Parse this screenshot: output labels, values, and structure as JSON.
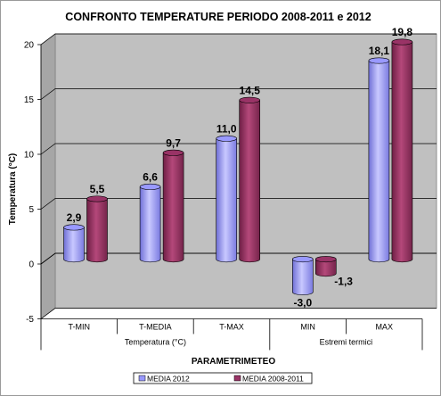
{
  "chart_data": {
    "type": "bar",
    "title": "CONFRONTO TEMPERATURE PERIODO 2008-2011 e 2012",
    "xlabel": "PARAMETRIMETEO",
    "ylabel": "Temperatura (°C)",
    "ylim": [
      -5,
      20
    ],
    "yticks": [
      -5,
      0,
      5,
      10,
      15,
      20
    ],
    "categories": [
      "T-MIN",
      "T-MEDIA",
      "T-MAX",
      "MIN",
      "MAX"
    ],
    "groups": [
      {
        "label": "Temperatura (°C)",
        "span": 3
      },
      {
        "label": "Estremi termici",
        "span": 2
      }
    ],
    "series": [
      {
        "name": "MEDIA 2012",
        "values": [
          2.9,
          6.6,
          11.0,
          -3.0,
          18.1
        ],
        "labels": [
          "2,9",
          "6,6",
          "11,0",
          "-3,0",
          "18,1"
        ],
        "color": "#9999ff"
      },
      {
        "name": "MEDIA 2008-2011",
        "values": [
          5.5,
          9.7,
          14.5,
          -1.3,
          19.8
        ],
        "labels": [
          "5,5",
          "9,7",
          "14,5",
          "-1,3",
          "19,8"
        ],
        "color": "#993366"
      }
    ],
    "grid": true,
    "legend": "bottom",
    "wall_color": "#c0c0c0"
  }
}
